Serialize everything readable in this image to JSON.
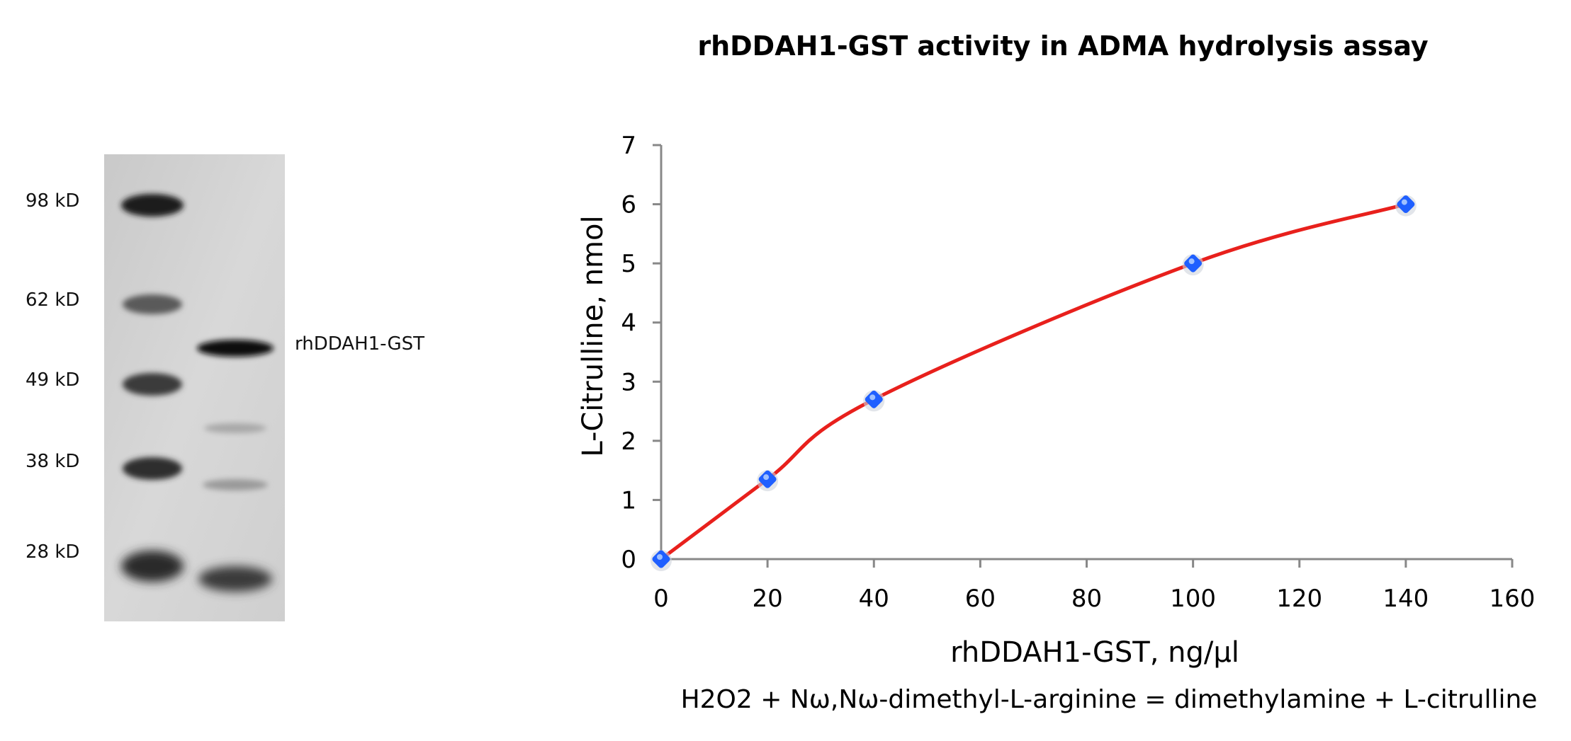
{
  "gel": {
    "markers": [
      "98 kD",
      "62 kD",
      "49 kD",
      "38 kD",
      "28 kD"
    ],
    "band_label": "rhDDAH1-GST"
  },
  "chart_data": {
    "type": "line",
    "title": "rhDDAH1-GST activity in ADMA hydrolysis assay",
    "xlabel": "rhDDAH1-GST, ng/µl",
    "ylabel": "L-Citrulline, nmol",
    "xlim": [
      0,
      160
    ],
    "ylim": [
      0,
      7
    ],
    "xticks": [
      "0",
      "20",
      "40",
      "60",
      "80",
      "100",
      "120",
      "140",
      "160"
    ],
    "yticks": [
      "0",
      "1",
      "2",
      "3",
      "4",
      "5",
      "6",
      "7"
    ],
    "x": [
      0,
      20,
      40,
      100,
      140
    ],
    "y": [
      0,
      1.35,
      2.7,
      5.0,
      6.0
    ],
    "line_color": "#e8201c",
    "marker_color": "#1f5fff",
    "grid": false,
    "annotation": "H2O2 + Nω,Nω-dimethyl-L-arginine = dimethylamine + L-citrulline"
  }
}
